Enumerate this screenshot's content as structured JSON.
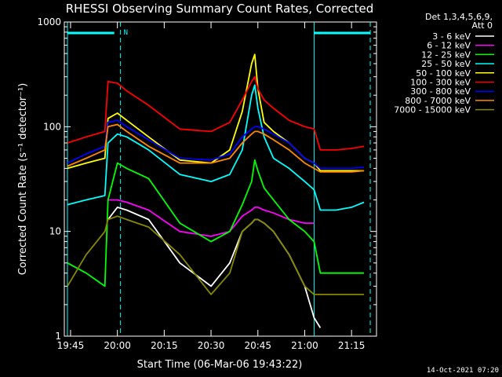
{
  "chart_data": {
    "type": "line",
    "title": "RHESSI Observing Summary Count Rates, Corrected",
    "xlabel": "Start Time (06-Mar-06 19:43:22)",
    "ylabel": "Corrected Count Rate (s⁻¹ detector⁻¹)",
    "yscale": "log",
    "ylim": [
      1,
      1000
    ],
    "xlim": [
      "19:43",
      "21:23"
    ],
    "x_ticks": [
      "19:45",
      "20:00",
      "20:15",
      "20:30",
      "20:45",
      "21:00",
      "21:15"
    ],
    "y_ticks": [
      "1",
      "10",
      "100",
      "1000"
    ],
    "legend_title": [
      "Det 1,3,4,5,6,9,",
      "Att 0"
    ],
    "legend_position": "right",
    "annotations": {
      "date_stamp": "14-Oct-2021 07:20",
      "night_marker": "N"
    },
    "x": [
      "19:44",
      "19:50",
      "19:56",
      "19:57",
      "20:00",
      "20:03",
      "20:10",
      "20:20",
      "20:30",
      "20:36",
      "20:40",
      "20:43",
      "20:44",
      "20:45",
      "20:47",
      "20:50",
      "20:55",
      "21:00",
      "21:03",
      "21:05",
      "21:10",
      "21:15",
      "21:19"
    ],
    "series": [
      {
        "name": "3 - 6 keV",
        "color": "#ffffff",
        "values": [
          null,
          null,
          null,
          13,
          17,
          16,
          13,
          5,
          3,
          5,
          10,
          12,
          13,
          13,
          12,
          10,
          6,
          3,
          1.5,
          1.2,
          null,
          null,
          null
        ]
      },
      {
        "name": "6 - 12 keV",
        "color": "#ff00ff",
        "values": [
          null,
          null,
          null,
          20,
          20,
          19,
          16,
          10,
          9,
          10,
          14,
          16,
          17,
          17,
          16,
          15,
          13,
          12,
          12,
          null,
          null,
          null,
          null
        ]
      },
      {
        "name": "12 - 25 keV",
        "color": "#00ff00",
        "values": [
          5,
          4,
          3,
          20,
          45,
          40,
          32,
          12,
          8,
          10,
          18,
          30,
          48,
          38,
          26,
          20,
          13,
          10,
          8,
          4,
          4,
          4,
          4
        ]
      },
      {
        "name": "25 - 50 keV",
        "color": "#00ffff",
        "values": [
          18,
          20,
          22,
          70,
          85,
          80,
          60,
          35,
          30,
          35,
          60,
          200,
          250,
          150,
          80,
          50,
          40,
          30,
          25,
          16,
          16,
          17,
          19
        ]
      },
      {
        "name": "50 - 100 keV",
        "color": "#ffff00",
        "values": [
          40,
          45,
          50,
          120,
          135,
          115,
          80,
          48,
          45,
          60,
          140,
          400,
          490,
          230,
          110,
          90,
          70,
          50,
          45,
          38,
          38,
          38,
          38
        ]
      },
      {
        "name": "100 - 300 keV",
        "color": "#ff0000",
        "values": [
          70,
          80,
          90,
          270,
          260,
          220,
          160,
          95,
          90,
          110,
          180,
          270,
          300,
          230,
          180,
          150,
          115,
          100,
          95,
          60,
          60,
          62,
          65
        ]
      },
      {
        "name": "300 - 800 keV",
        "color": "#0000ff",
        "values": [
          45,
          55,
          65,
          110,
          115,
          100,
          75,
          50,
          48,
          55,
          80,
          95,
          100,
          100,
          95,
          85,
          70,
          50,
          45,
          40,
          40,
          40,
          41
        ]
      },
      {
        "name": "800 - 7000 keV",
        "color": "#ff8800",
        "values": [
          42,
          50,
          60,
          100,
          105,
          90,
          65,
          45,
          45,
          50,
          70,
          85,
          90,
          90,
          85,
          75,
          60,
          45,
          40,
          37,
          37,
          37,
          38
        ]
      },
      {
        "name": "7000 - 15000 keV",
        "color": "#888800",
        "values": [
          3,
          6,
          10,
          13,
          14,
          13,
          11,
          6,
          2.5,
          4,
          10,
          12,
          13,
          13,
          12,
          10,
          6,
          3,
          2.5,
          2.5,
          2.5,
          2.5,
          2.5
        ]
      }
    ]
  }
}
